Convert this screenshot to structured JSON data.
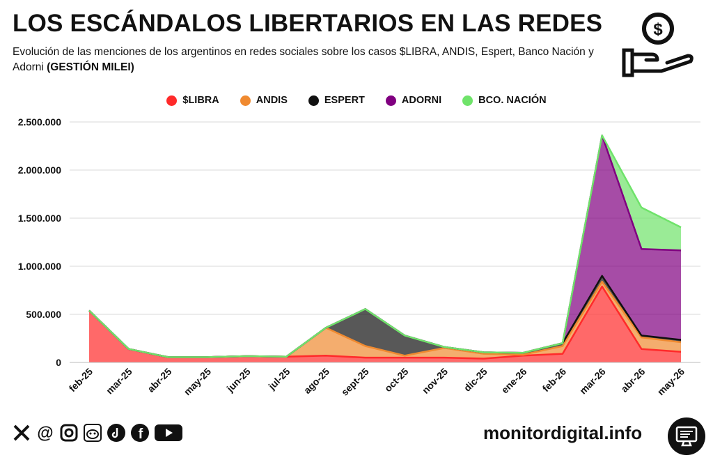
{
  "header": {
    "title": "LOS ESCÁNDALOS LIBERTARIOS EN LAS REDES",
    "subtitle_main": "Evolución de las menciones de los argentinos en redes sociales sobre los casos $LIBRA, ANDIS, Espert, Banco Nación y Adorni",
    "subtitle_bold": "(GESTIÓN MILEI)"
  },
  "footer": {
    "brand": "monitordigital.info",
    "social_icons": [
      "x-icon",
      "threads-icon",
      "instagram-icon",
      "reddit-icon",
      "tiktok-icon",
      "facebook-icon",
      "youtube-icon"
    ]
  },
  "chart_data": {
    "type": "area",
    "stacked": true,
    "categories": [
      "feb-25",
      "mar-25",
      "abr-25",
      "may-25",
      "jun-25",
      "jul-25",
      "ago-25",
      "sept-25",
      "oct-25",
      "nov-25",
      "dic-25",
      "ene-26",
      "feb-26",
      "mar-26",
      "abr-26",
      "may-26"
    ],
    "series": [
      {
        "name": "$LIBRA",
        "color": "#ff2a2a",
        "values": [
          540000,
          140000,
          55000,
          55000,
          65000,
          60000,
          70000,
          50000,
          50000,
          50000,
          40000,
          70000,
          90000,
          790000,
          140000,
          110000
        ]
      },
      {
        "name": "ANDIS",
        "color": "#f08a30",
        "values": [
          0,
          0,
          0,
          0,
          0,
          0,
          290000,
          120000,
          20000,
          100000,
          50000,
          10000,
          80000,
          50000,
          120000,
          100000
        ]
      },
      {
        "name": "ESPERT",
        "color": "#111111",
        "values": [
          0,
          0,
          0,
          0,
          0,
          0,
          0,
          385000,
          210000,
          10000,
          15000,
          20000,
          30000,
          60000,
          20000,
          25000
        ]
      },
      {
        "name": "ADORNI",
        "color": "#800080",
        "values": [
          0,
          0,
          0,
          0,
          0,
          0,
          0,
          0,
          0,
          0,
          0,
          0,
          0,
          1460000,
          900000,
          930000
        ]
      },
      {
        "name": "BCO. NACIÓN",
        "color": "#6fe36a",
        "values": [
          0,
          0,
          0,
          0,
          0,
          0,
          0,
          0,
          0,
          0,
          0,
          0,
          0,
          0,
          430000,
          240000
        ]
      }
    ],
    "ylim": [
      0,
      2500000
    ],
    "y_ticks": [
      0,
      500000,
      1000000,
      1500000,
      2000000,
      2500000
    ],
    "y_tick_labels": [
      "0",
      "500.000",
      "1.000.000",
      "1.500.000",
      "2.000.000",
      "2.500.000"
    ],
    "grid": true,
    "legend_position": "top"
  }
}
